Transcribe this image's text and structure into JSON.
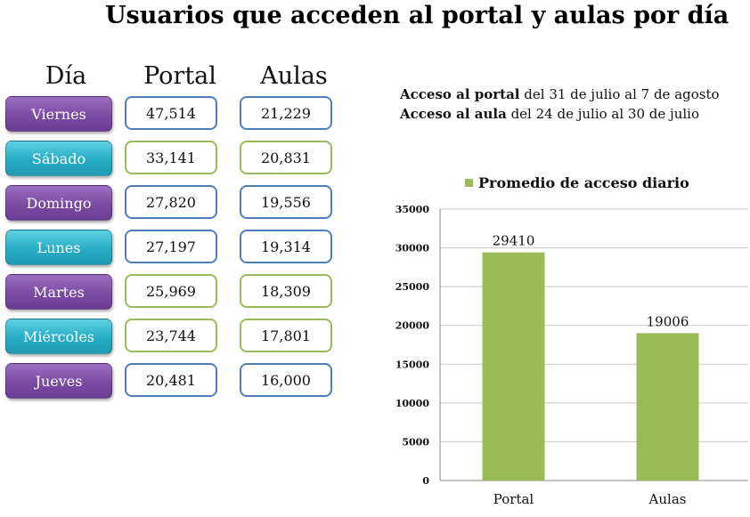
{
  "title": "Usuarios que acceden al portal y aulas por día",
  "table": {
    "headers": {
      "day": "Día",
      "portal": "Portal",
      "aulas": "Aulas"
    },
    "rows": [
      {
        "day": "Viernes",
        "portal": "47,514",
        "aulas": "21,229",
        "day_color": "#7a4ba3",
        "box_color": "#4f7fb8"
      },
      {
        "day": "Sábado",
        "portal": "33,141",
        "aulas": "20,831",
        "day_color": "#27adc6",
        "box_color": "#9bbb59"
      },
      {
        "day": "Domingo",
        "portal": "27,820",
        "aulas": "19,556",
        "day_color": "#7a4ba3",
        "box_color": "#4f7fb8"
      },
      {
        "day": "Lunes",
        "portal": "27,197",
        "aulas": "19,314",
        "day_color": "#27adc6",
        "box_color": "#4f7fb8"
      },
      {
        "day": "Martes",
        "portal": "25,969",
        "aulas": "18,309",
        "day_color": "#7a4ba3",
        "box_color": "#9bbb59"
      },
      {
        "day": "Miércoles",
        "portal": "23,744",
        "aulas": "17,801",
        "day_color": "#27adc6",
        "box_color": "#9bbb59"
      },
      {
        "day": "Jueves",
        "portal": "20,481",
        "aulas": "16,000",
        "day_color": "#7a4ba3",
        "box_color": "#4f7fb8"
      }
    ]
  },
  "ranges": {
    "portal_bold": "Acceso al portal",
    "portal_rest": " del 31 de julio al 7 de agosto",
    "aula_bold": "Acceso al aula",
    "aula_rest": " del 24 de julio al 30 de julio"
  },
  "chart_data": {
    "type": "bar",
    "categories": [
      "Portal",
      "Aulas"
    ],
    "series": [
      {
        "name": "Promedio de acceso diario",
        "values": [
          29410,
          19006
        ],
        "color": "#9bbb59"
      }
    ],
    "ylim": [
      0,
      35000
    ],
    "yticks": [
      0,
      5000,
      10000,
      15000,
      20000,
      25000,
      30000,
      35000
    ],
    "grid": true,
    "legend_position": "top",
    "data_labels": true
  }
}
